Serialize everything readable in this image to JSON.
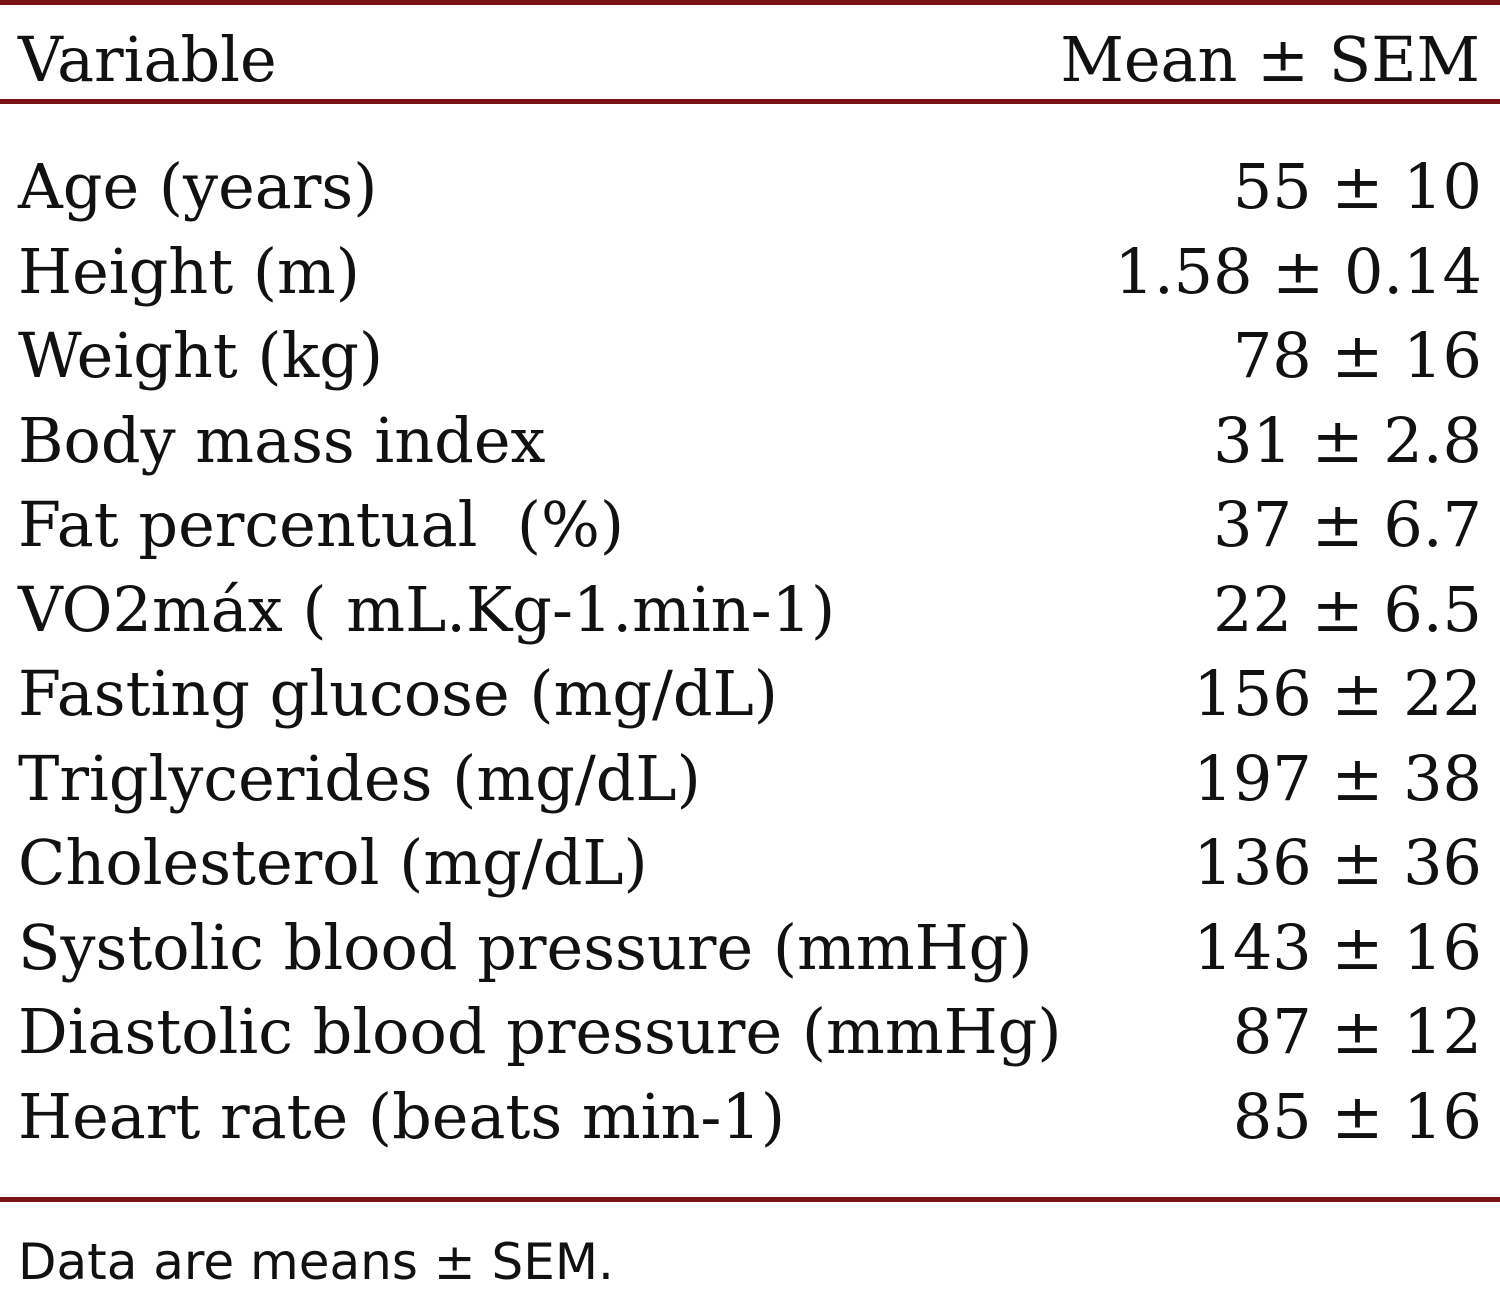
{
  "table": {
    "header": {
      "variable": "Variable",
      "mean": "Mean ± SEM"
    },
    "rows": [
      {
        "variable": "Age (years)",
        "value": "55 ± 10"
      },
      {
        "variable": "Height (m)",
        "value": "1.58 ± 0.14"
      },
      {
        "variable": "Weight (kg)",
        "value": "78 ± 16"
      },
      {
        "variable": "Body mass index",
        "value": "31 ± 2.8"
      },
      {
        "variable": "Fat percentual  (%)",
        "value": "37 ± 6.7"
      },
      {
        "variable": "VO2máx ( mL.Kg-1.min-1)",
        "value": "22 ± 6.5"
      },
      {
        "variable": "Fasting glucose (mg/dL)",
        "value": "156 ± 22"
      },
      {
        "variable": "Triglycerides (mg/dL)",
        "value": "197 ± 38"
      },
      {
        "variable": "Cholesterol (mg/dL)",
        "value": "136 ± 36"
      },
      {
        "variable": "Systolic blood pressure (mmHg)",
        "value": "143 ± 16"
      },
      {
        "variable": "Diastolic blood pressure (mmHg)",
        "value": "87 ± 12"
      },
      {
        "variable": "Heart rate (beats min-1)",
        "value": "85 ± 16"
      }
    ],
    "footnote": "Data are means ± SEM."
  },
  "colors": {
    "rule": "#7a1216",
    "text": "#111111",
    "background": "#ffffff"
  }
}
